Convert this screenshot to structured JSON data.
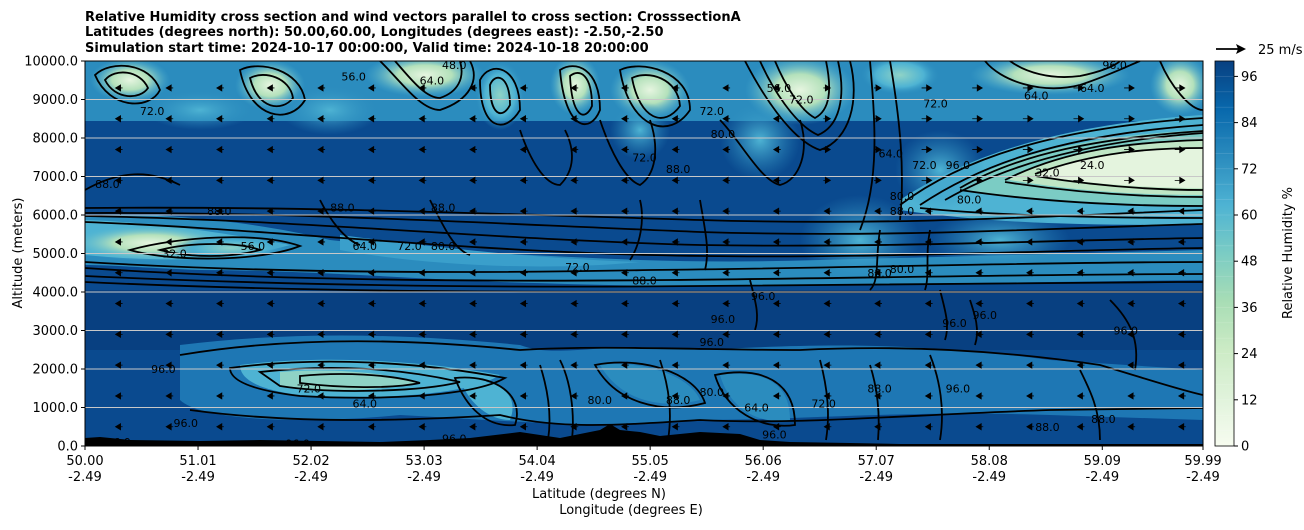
{
  "chart_data": {
    "type": "contour",
    "title": [
      "Relative Humidity cross section and wind vectors parallel to cross section: CrosssectionA",
      "Latitudes (degrees north): 50.00,60.00, Longitudes (degrees east): -2.50,-2.50",
      "Simulation start time: 2024-10-17 00:00:00, Valid time: 2024-10-18 20:00:00"
    ],
    "xlabel": [
      "Latitude (degrees N)",
      "Longitude (degrees E)"
    ],
    "ylabel": "Altitude (meters)",
    "x_ticks": [
      {
        "lat": "50.00",
        "lon": "-2.49",
        "value": 50.0
      },
      {
        "lat": "51.01",
        "lon": "-2.49",
        "value": 51.01
      },
      {
        "lat": "52.02",
        "lon": "-2.49",
        "value": 52.02
      },
      {
        "lat": "53.03",
        "lon": "-2.49",
        "value": 53.03
      },
      {
        "lat": "54.04",
        "lon": "-2.49",
        "value": 54.04
      },
      {
        "lat": "55.05",
        "lon": "-2.49",
        "value": 55.05
      },
      {
        "lat": "56.06",
        "lon": "-2.49",
        "value": 56.06
      },
      {
        "lat": "57.07",
        "lon": "-2.49",
        "value": 57.07
      },
      {
        "lat": "58.08",
        "lon": "-2.49",
        "value": 58.08
      },
      {
        "lat": "59.09",
        "lon": "-2.49",
        "value": 59.09
      },
      {
        "lat": "59.99",
        "lon": "-2.49",
        "value": 59.99
      }
    ],
    "y_ticks": [
      {
        "label": "0.0",
        "value": 0
      },
      {
        "label": "1000.0",
        "value": 1000
      },
      {
        "label": "2000.0",
        "value": 2000
      },
      {
        "label": "3000.0",
        "value": 3000
      },
      {
        "label": "4000.0",
        "value": 4000
      },
      {
        "label": "5000.0",
        "value": 5000
      },
      {
        "label": "6000.0",
        "value": 6000
      },
      {
        "label": "7000.0",
        "value": 7000
      },
      {
        "label": "8000.0",
        "value": 8000
      },
      {
        "label": "9000.0",
        "value": 9000
      },
      {
        "label": "10000.0",
        "value": 10000
      }
    ],
    "xlim": [
      50.0,
      59.99
    ],
    "ylim": [
      0,
      10000
    ],
    "grid": "horizontal",
    "colorbar": {
      "label": "Relative Humidity %",
      "ticks": [
        "0",
        "12",
        "24",
        "36",
        "48",
        "60",
        "72",
        "84",
        "96"
      ],
      "tick_values": [
        0,
        12,
        24,
        36,
        48,
        60,
        72,
        84,
        96
      ],
      "range": [
        0,
        100
      ],
      "levels": 25,
      "colormap_stops": [
        "#f7fcf0",
        "#e0f3db",
        "#ccebc5",
        "#a8ddb5",
        "#7bccc4",
        "#4eb3d3",
        "#2b8cbe",
        "#0868ac",
        "#084081"
      ]
    },
    "wind_key": {
      "label": "25 m/s",
      "value": 25
    },
    "contour_labels": [
      {
        "text": "96.0",
        "x": 50.3,
        "y": 100
      },
      {
        "text": "96.0",
        "x": 51.9,
        "y": 60
      },
      {
        "text": "96.0",
        "x": 50.9,
        "y": 600
      },
      {
        "text": "96.0",
        "x": 50.7,
        "y": 2000
      },
      {
        "text": "64.0",
        "x": 52.5,
        "y": 1100
      },
      {
        "text": "72.0",
        "x": 52.0,
        "y": 1500
      },
      {
        "text": "96.0",
        "x": 53.3,
        "y": 200
      },
      {
        "text": "88.0",
        "x": 53.5,
        "y": 40
      },
      {
        "text": "96.0",
        "x": 55.6,
        "y": 2700
      },
      {
        "text": "96.0",
        "x": 55.7,
        "y": 3300
      },
      {
        "text": "72.0",
        "x": 54.4,
        "y": 4650
      },
      {
        "text": "96.0",
        "x": 56.06,
        "y": 3900
      },
      {
        "text": "96.0",
        "x": 57.77,
        "y": 3200
      },
      {
        "text": "96.0",
        "x": 58.04,
        "y": 3400
      },
      {
        "text": "96.0",
        "x": 59.3,
        "y": 3000
      },
      {
        "text": "88.0",
        "x": 58.6,
        "y": 500
      },
      {
        "text": "88.0",
        "x": 59.1,
        "y": 700
      },
      {
        "text": "96.0",
        "x": 56.16,
        "y": 300
      },
      {
        "text": "88.0",
        "x": 52.3,
        "y": 6200
      },
      {
        "text": "88.0",
        "x": 50.2,
        "y": 6800
      },
      {
        "text": "88.0",
        "x": 51.2,
        "y": 6100
      },
      {
        "text": "32.0",
        "x": 50.8,
        "y": 5000
      },
      {
        "text": "56.0",
        "x": 51.5,
        "y": 5200
      },
      {
        "text": "64.0",
        "x": 52.5,
        "y": 5200
      },
      {
        "text": "72.0",
        "x": 52.9,
        "y": 5200
      },
      {
        "text": "80.0",
        "x": 53.2,
        "y": 5200
      },
      {
        "text": "88.0",
        "x": 53.2,
        "y": 6200
      },
      {
        "text": "64.0",
        "x": 53.1,
        "y": 9500
      },
      {
        "text": "48.0",
        "x": 53.3,
        "y": 9900
      },
      {
        "text": "72.0",
        "x": 50.6,
        "y": 8700
      },
      {
        "text": "56.0",
        "x": 52.4,
        "y": 9600
      },
      {
        "text": "72.0",
        "x": 55.0,
        "y": 7500
      },
      {
        "text": "88.0",
        "x": 55.3,
        "y": 7200
      },
      {
        "text": "88.0",
        "x": 55.0,
        "y": 4300
      },
      {
        "text": "72.0",
        "x": 55.6,
        "y": 8700
      },
      {
        "text": "80.0",
        "x": 55.7,
        "y": 8100
      },
      {
        "text": "56.0",
        "x": 56.2,
        "y": 9300
      },
      {
        "text": "72.0",
        "x": 56.4,
        "y": 9000
      },
      {
        "text": "64.0",
        "x": 57.2,
        "y": 7600
      },
      {
        "text": "72.0",
        "x": 57.5,
        "y": 7300
      },
      {
        "text": "80.0",
        "x": 57.3,
        "y": 6500
      },
      {
        "text": "88.0",
        "x": 57.3,
        "y": 6100
      },
      {
        "text": "96.0",
        "x": 57.8,
        "y": 7300
      },
      {
        "text": "32.0",
        "x": 58.6,
        "y": 7100
      },
      {
        "text": "24.0",
        "x": 59.0,
        "y": 7300
      },
      {
        "text": "64.0",
        "x": 58.5,
        "y": 9100
      },
      {
        "text": "64.0",
        "x": 59.0,
        "y": 9300
      },
      {
        "text": "96.0",
        "x": 59.2,
        "y": 9900
      },
      {
        "text": "72.0",
        "x": 57.6,
        "y": 8900
      },
      {
        "text": "80.0",
        "x": 57.9,
        "y": 6400
      },
      {
        "text": "88.0",
        "x": 57.1,
        "y": 4500
      },
      {
        "text": "80.0",
        "x": 57.3,
        "y": 4600
      },
      {
        "text": "88.0",
        "x": 55.3,
        "y": 1200
      },
      {
        "text": "80.0",
        "x": 54.6,
        "y": 1200
      },
      {
        "text": "88.0",
        "x": 57.1,
        "y": 1500
      },
      {
        "text": "96.0",
        "x": 57.8,
        "y": 1500
      },
      {
        "text": "72.0",
        "x": 56.6,
        "y": 1100
      },
      {
        "text": "64.0",
        "x": 56.0,
        "y": 1000
      },
      {
        "text": "80.0",
        "x": 55.6,
        "y": 1400
      }
    ]
  }
}
